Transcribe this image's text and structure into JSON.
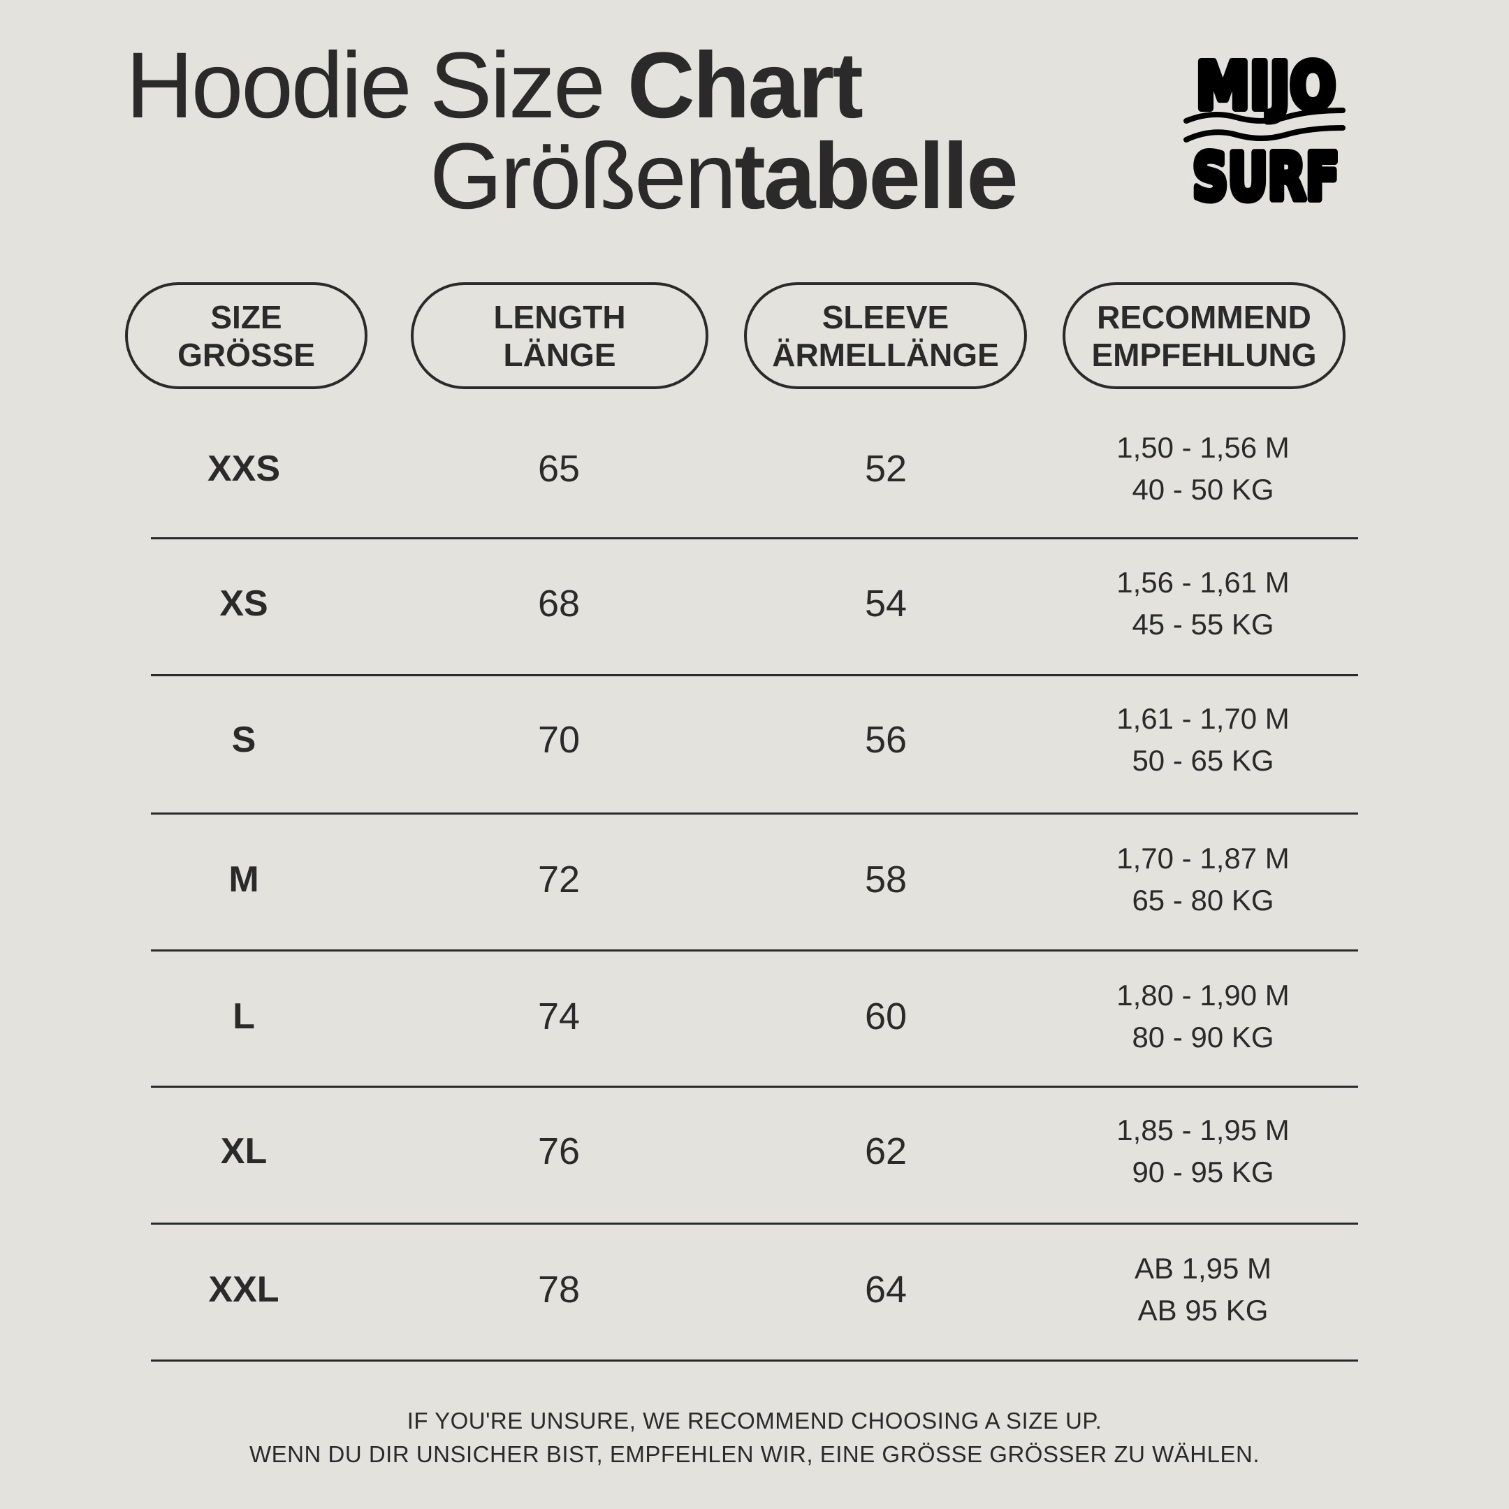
{
  "title": {
    "word1": "Hoodie",
    "word2": "Size",
    "word3": "Chart",
    "de_light": "Größen",
    "de_bold": "tabelle"
  },
  "logo": {
    "line1": "MIJO",
    "line2": "SURF"
  },
  "headers": [
    {
      "en": "SIZE",
      "de": "GRÖSSE"
    },
    {
      "en": "LENGTH",
      "de": "LÄNGE"
    },
    {
      "en": "SLEEVE",
      "de": "ÄRMELLÄNGE"
    },
    {
      "en": "RECOMMEND",
      "de": "EMPFEHLUNG"
    }
  ],
  "rows": [
    {
      "size": "XXS",
      "length": "65",
      "sleeve": "52",
      "height": "1,50 - 1,56 M",
      "weight": "40 - 50 KG"
    },
    {
      "size": "XS",
      "length": "68",
      "sleeve": "54",
      "height": "1,56 - 1,61 M",
      "weight": "45 - 55 KG"
    },
    {
      "size": "S",
      "length": "70",
      "sleeve": "56",
      "height": "1,61 - 1,70 M",
      "weight": "50 - 65 KG"
    },
    {
      "size": "M",
      "length": "72",
      "sleeve": "58",
      "height": "1,70 - 1,87 M",
      "weight": "65 - 80 KG"
    },
    {
      "size": "L",
      "length": "74",
      "sleeve": "60",
      "height": "1,80 - 1,90 M",
      "weight": "80 - 90 KG"
    },
    {
      "size": "XL",
      "length": "76",
      "sleeve": "62",
      "height": "1,85 - 1,95 M",
      "weight": "90 - 95 KG"
    },
    {
      "size": "XXL",
      "length": "78",
      "sleeve": "64",
      "height": "AB 1,95 M",
      "weight": "AB 95 KG"
    }
  ],
  "footer": {
    "en": "IF YOU'RE UNSURE, WE RECOMMEND CHOOSING A SIZE UP.",
    "de": "WENN DU DIR UNSICHER BIST, EMPFEHLEN WIR, EINE GRÖSSE GRÖSSER ZU WÄHLEN."
  },
  "colors": {
    "background": "#e3e2dd",
    "text": "#2a2a2a"
  }
}
